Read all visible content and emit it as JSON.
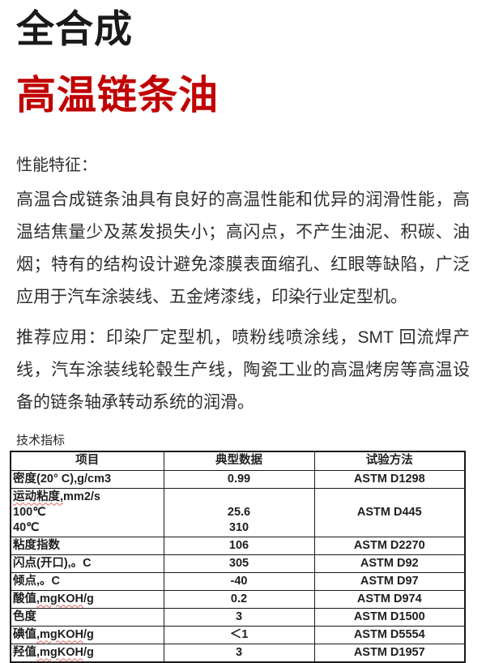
{
  "colors": {
    "accent_red": "#c00000",
    "text": "#2b2b2b",
    "spellcheck_red": "#d96a5f"
  },
  "header": {
    "title_black": "全合成",
    "title_red": "高温链条油"
  },
  "performance": {
    "heading": "性能特征：",
    "description": "高温合成链条油具有良好的高温性能和优异的润滑性能，高温结焦量少及蒸发损失小；高闪点，不产生油泥、积碳、油烟；特有的结构设计避免漆膜表面缩孔、红眼等缺陷，广泛应用于汽车涂装线、五金烤漆线，印染行业定型机。",
    "applications": "推荐应用：印染厂定型机，喷粉线喷涂线，SMT 回流焊产线，汽车涂装线轮毂生产线，陶瓷工业的高温烤房等高温设备的链条轴承转动系统的润滑。"
  },
  "specs": {
    "heading": "技术指标",
    "table": {
      "headers": [
        "项目",
        "典型数据",
        "试验方法"
      ],
      "rows": [
        {
          "item": [
            [
              {
                "text": "密度(20° C),g/cm3"
              }
            ]
          ],
          "values": [
            "0.99"
          ],
          "methods": [
            "ASTM D1298"
          ]
        },
        {
          "item": [
            [
              {
                "text": "运动粘度,",
                "wavy": true
              },
              {
                "text": "mm2/s"
              }
            ],
            [
              {
                "text": "100℃"
              }
            ],
            [
              {
                "text": "40℃"
              }
            ]
          ],
          "values": [
            "",
            "25.6",
            "310"
          ],
          "methods": [
            "",
            "ASTM D445",
            ""
          ]
        },
        {
          "item": [
            [
              {
                "text": "粘度指数"
              }
            ]
          ],
          "values": [
            "106"
          ],
          "methods": [
            "ASTM D2270"
          ]
        },
        {
          "item": [
            [
              {
                "text": "闪点(开口),。C"
              }
            ]
          ],
          "values": [
            "305"
          ],
          "methods": [
            "ASTM D92"
          ]
        },
        {
          "item": [
            [
              {
                "text": "倾点,。C"
              }
            ]
          ],
          "values": [
            "-40"
          ],
          "methods": [
            "ASTM D97"
          ]
        },
        {
          "item": [
            [
              {
                "text": "酸值"
              },
              {
                "text": ",mgKOH",
                "wavy": true
              },
              {
                "text": "/g"
              }
            ]
          ],
          "values": [
            "0.2"
          ],
          "methods": [
            "ASTM D974"
          ]
        },
        {
          "item": [
            [
              {
                "text": "色度"
              }
            ]
          ],
          "values": [
            "3"
          ],
          "methods": [
            "ASTM D1500"
          ]
        },
        {
          "item": [
            [
              {
                "text": "碘值"
              },
              {
                "text": ",mgKOH",
                "wavy": true
              },
              {
                "text": "/g"
              }
            ]
          ],
          "values": [
            "＜1"
          ],
          "methods": [
            "ASTM D5554"
          ]
        },
        {
          "item": [
            [
              {
                "text": "羟值"
              },
              {
                "text": ",mgKOH",
                "wavy": true
              },
              {
                "text": "/g"
              }
            ]
          ],
          "values": [
            "3"
          ],
          "methods": [
            "ASTM D1957"
          ]
        }
      ]
    }
  }
}
